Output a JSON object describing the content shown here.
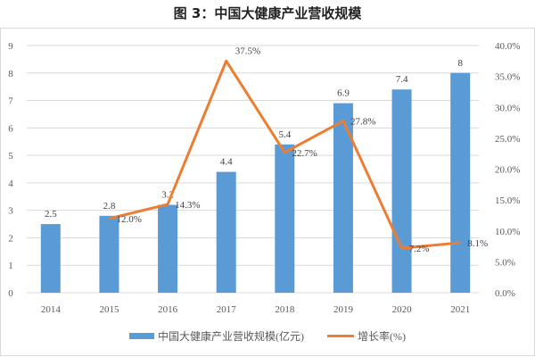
{
  "chart_data": {
    "type": "bar+line",
    "title": "图 3：中国大健康产业营收规模",
    "categories": [
      "2014",
      "2015",
      "2016",
      "2017",
      "2018",
      "2019",
      "2020",
      "2021"
    ],
    "series": [
      {
        "name": "中国大健康产业营收规模(亿元)",
        "type": "bar",
        "axis": "left",
        "color": "#5b9bd5",
        "values": [
          2.5,
          2.8,
          3.2,
          4.4,
          5.4,
          6.9,
          7.4,
          8
        ],
        "labels": [
          "2.5",
          "2.8",
          "3.2",
          "4.4",
          "5.4",
          "6.9",
          "7.4",
          "8"
        ]
      },
      {
        "name": "增长率(%)",
        "type": "line",
        "axis": "right",
        "color": "#ed7d31",
        "values": [
          null,
          12.0,
          14.3,
          37.5,
          22.7,
          27.8,
          7.2,
          8.1
        ],
        "labels": [
          "",
          "12.0%",
          "14.3%",
          "37.5%",
          "22.7%",
          "27.8%",
          "7.2%",
          "8.1%"
        ]
      }
    ],
    "left_axis": {
      "ylim": [
        0,
        9
      ],
      "ticks": [
        "0",
        "1",
        "2",
        "3",
        "4",
        "5",
        "6",
        "7",
        "8",
        "9"
      ]
    },
    "right_axis": {
      "ylim": [
        0,
        40
      ],
      "ticks": [
        "0.0%",
        "5.0%",
        "10.0%",
        "15.0%",
        "20.0%",
        "25.0%",
        "30.0%",
        "35.0%",
        "40.0%"
      ]
    },
    "grid": true,
    "legend": "bottom"
  }
}
